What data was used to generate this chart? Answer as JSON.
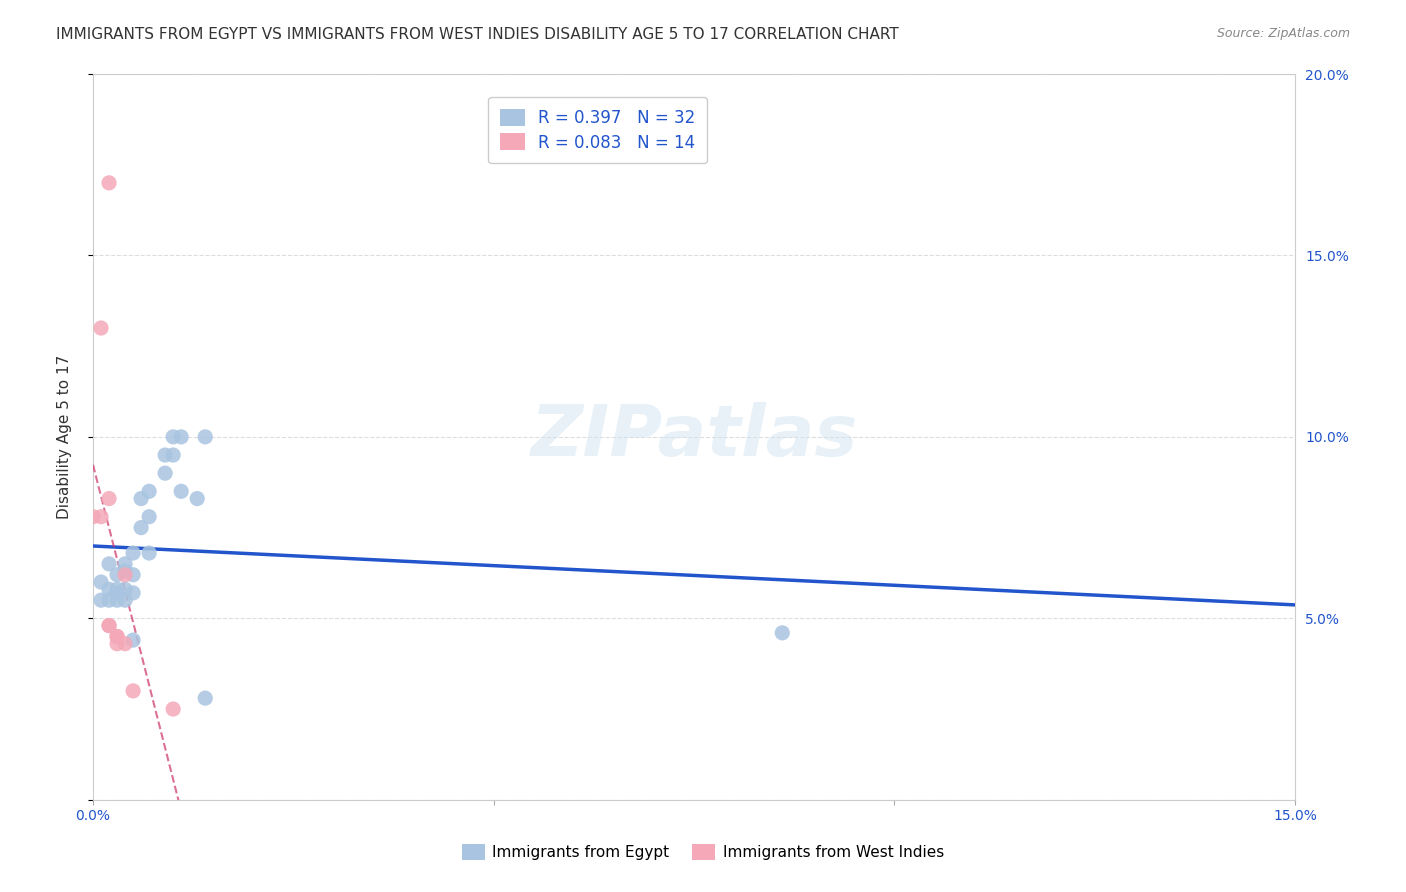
{
  "title": "IMMIGRANTS FROM EGYPT VS IMMIGRANTS FROM WEST INDIES DISABILITY AGE 5 TO 17 CORRELATION CHART",
  "source_text": "Source: ZipAtlas.com",
  "xlabel": "",
  "ylabel": "Disability Age 5 to 17",
  "xlim": [
    0.0,
    0.15
  ],
  "ylim": [
    0.0,
    0.2
  ],
  "watermark": "ZIPatlas",
  "egypt_color": "#a8c4e0",
  "west_indies_color": "#f4a8b8",
  "egypt_line_color": "#2255cc",
  "west_indies_line_color": "#cc3366",
  "egypt_R": 0.397,
  "egypt_N": 32,
  "west_indies_R": 0.083,
  "west_indies_N": 14,
  "egypt_x": [
    0.001,
    0.001,
    0.002,
    0.002,
    0.002,
    0.003,
    0.003,
    0.003,
    0.003,
    0.004,
    0.004,
    0.004,
    0.004,
    0.005,
    0.005,
    0.005,
    0.005,
    0.006,
    0.006,
    0.007,
    0.007,
    0.007,
    0.009,
    0.009,
    0.01,
    0.01,
    0.011,
    0.011,
    0.013,
    0.014,
    0.014,
    0.086
  ],
  "egypt_y": [
    0.06,
    0.055,
    0.065,
    0.058,
    0.055,
    0.062,
    0.058,
    0.057,
    0.055,
    0.065,
    0.063,
    0.058,
    0.055,
    0.068,
    0.062,
    0.057,
    0.044,
    0.083,
    0.075,
    0.085,
    0.078,
    0.068,
    0.095,
    0.09,
    0.1,
    0.095,
    0.1,
    0.085,
    0.083,
    0.1,
    0.028,
    0.046
  ],
  "west_indies_x": [
    0.0,
    0.001,
    0.001,
    0.002,
    0.002,
    0.002,
    0.002,
    0.003,
    0.003,
    0.003,
    0.004,
    0.004,
    0.005,
    0.01
  ],
  "west_indies_y": [
    0.078,
    0.13,
    0.078,
    0.17,
    0.083,
    0.048,
    0.048,
    0.045,
    0.045,
    0.043,
    0.062,
    0.043,
    0.03,
    0.025
  ],
  "background_color": "#ffffff",
  "grid_color": "#dddddd",
  "title_fontsize": 11,
  "axis_label_fontsize": 11,
  "tick_fontsize": 10,
  "legend_fontsize": 12
}
